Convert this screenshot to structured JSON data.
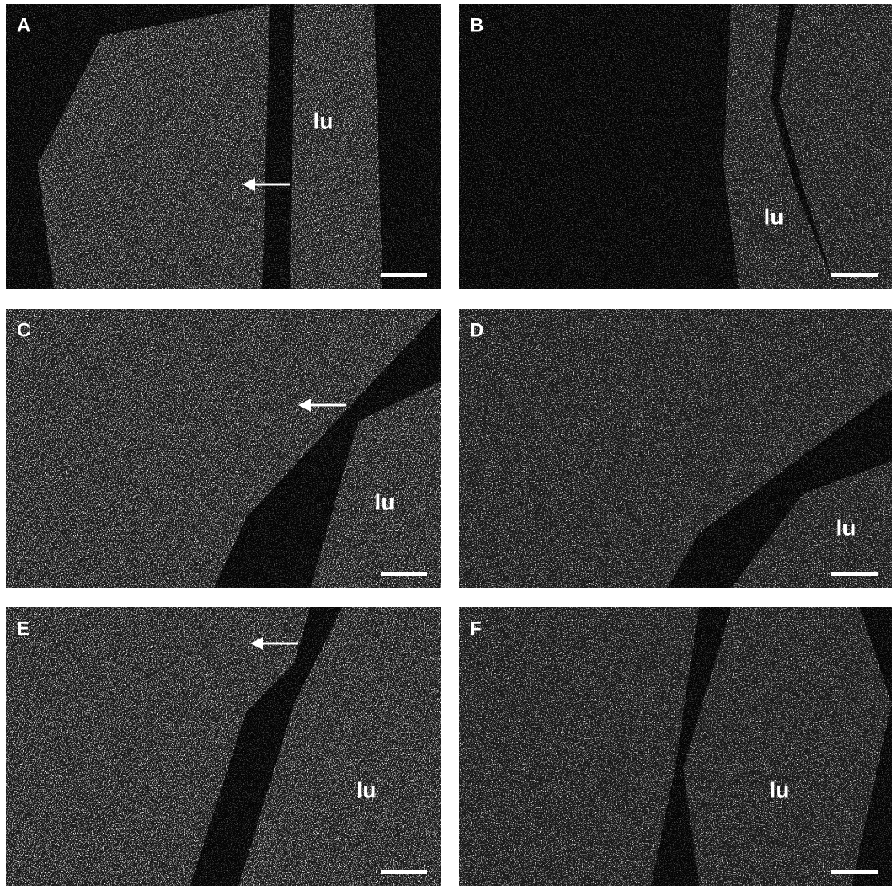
{
  "panels": [
    {
      "label": "A",
      "lumen": "lu"
    },
    {
      "label": "B",
      "lumen": "lu"
    },
    {
      "label": "C",
      "lumen": "lu"
    },
    {
      "label": "D",
      "lumen": "lu"
    },
    {
      "label": "E",
      "lumen": "lu"
    },
    {
      "label": "F",
      "lumen": "lu"
    }
  ]
}
